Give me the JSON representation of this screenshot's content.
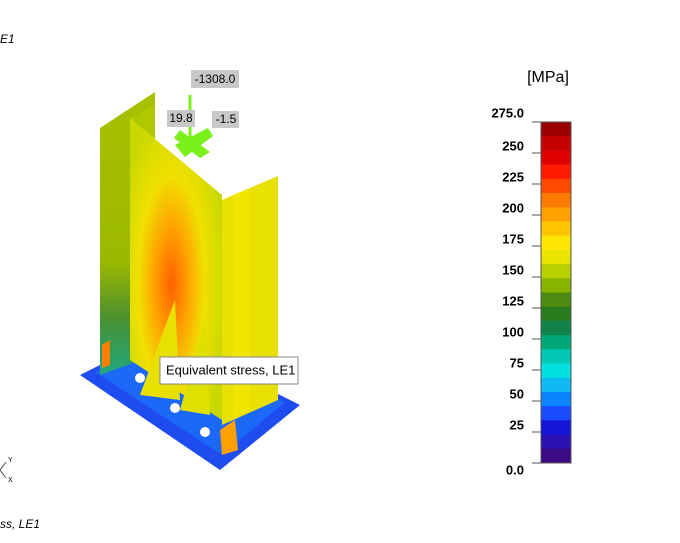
{
  "viewport": {
    "top_left_label": "E1",
    "bottom_left_label": "ss, LE1",
    "axis_y": "Y",
    "axis_x": "X"
  },
  "model": {
    "load_labels": [
      "-1308.0",
      "19.8",
      "-1.5"
    ],
    "tooltip": "Equivalent stress, LE1"
  },
  "legend": {
    "unit": "[MPa]",
    "labels": [
      "275.0",
      "250",
      "225",
      "200",
      "175",
      "150",
      "125",
      "100",
      "75",
      "50",
      "25",
      "0.0"
    ],
    "colors": [
      "#9c0000",
      "#c40000",
      "#e00000",
      "#ff1a00",
      "#ff4a00",
      "#ff7a00",
      "#ffa000",
      "#ffc400",
      "#ffe600",
      "#e8e600",
      "#b8d000",
      "#88b400",
      "#4c8a10",
      "#2a7a1e",
      "#10844a",
      "#00a878",
      "#00c8b4",
      "#00e0e0",
      "#10b8f4",
      "#0a84ff",
      "#1a4cff",
      "#1414d8",
      "#2a10b0",
      "#3c0a84"
    ]
  }
}
